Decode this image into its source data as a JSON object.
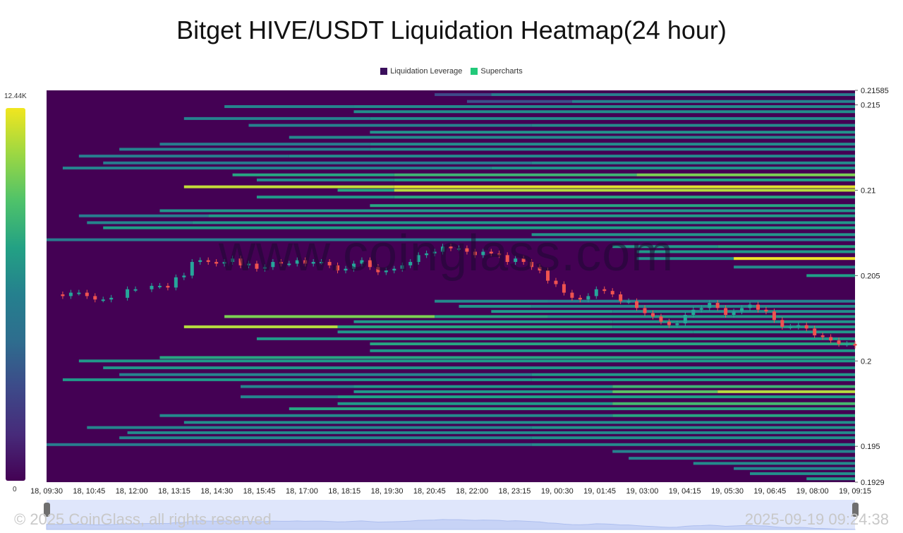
{
  "chart_data": {
    "type": "heatmap",
    "title": "Bitget HIVE/USDT Liquidation Heatmap(24 hour)",
    "legend": [
      {
        "label": "Liquidation Leverage",
        "color": "#3b0f5c"
      },
      {
        "label": "Supercharts",
        "color": "#22c97a"
      }
    ],
    "colorbar": {
      "max_label": "12.44K",
      "min_label": "0"
    },
    "x_tick_labels": [
      "18, 09:30",
      "18, 10:45",
      "18, 12:00",
      "18, 13:15",
      "18, 14:30",
      "18, 15:45",
      "18, 17:00",
      "18, 18:15",
      "18, 19:30",
      "18, 20:45",
      "18, 22:00",
      "18, 23:15",
      "19, 00:30",
      "19, 01:45",
      "19, 03:00",
      "19, 04:15",
      "19, 05:30",
      "19, 06:45",
      "19, 08:00",
      "19, 09:15"
    ],
    "y_tick_labels": [
      0.21585,
      0.215,
      0.21,
      0.205,
      0.2,
      0.195,
      0.1929
    ],
    "ylim": [
      0.1929,
      0.21585
    ],
    "background_color": "#440154",
    "liquidation_levels": [
      {
        "price": 0.2156,
        "segments": [
          [
            0.48,
            0.55,
            0.2
          ],
          [
            0.55,
            1.0,
            0.38
          ]
        ]
      },
      {
        "price": 0.2152,
        "segments": [
          [
            0.52,
            0.65,
            0.22
          ],
          [
            0.65,
            1.0,
            0.4
          ]
        ]
      },
      {
        "price": 0.2149,
        "segments": [
          [
            0.22,
            0.38,
            0.42
          ],
          [
            0.38,
            1.0,
            0.45
          ]
        ]
      },
      {
        "price": 0.2146,
        "segments": [
          [
            0.38,
            1.0,
            0.48
          ]
        ]
      },
      {
        "price": 0.2142,
        "segments": [
          [
            0.17,
            0.4,
            0.4
          ],
          [
            0.4,
            1.0,
            0.47
          ]
        ]
      },
      {
        "price": 0.2138,
        "segments": [
          [
            0.25,
            0.6,
            0.4
          ],
          [
            0.6,
            1.0,
            0.46
          ]
        ]
      },
      {
        "price": 0.2134,
        "segments": [
          [
            0.4,
            1.0,
            0.5
          ]
        ]
      },
      {
        "price": 0.2131,
        "segments": [
          [
            0.3,
            1.0,
            0.44
          ]
        ]
      },
      {
        "price": 0.2127,
        "segments": [
          [
            0.14,
            0.4,
            0.38
          ],
          [
            0.4,
            1.0,
            0.46
          ]
        ]
      },
      {
        "price": 0.2124,
        "segments": [
          [
            0.09,
            0.4,
            0.4
          ],
          [
            0.4,
            1.0,
            0.48
          ]
        ]
      },
      {
        "price": 0.212,
        "segments": [
          [
            0.04,
            0.3,
            0.38
          ],
          [
            0.3,
            1.0,
            0.45
          ]
        ]
      },
      {
        "price": 0.2116,
        "segments": [
          [
            0.07,
            0.6,
            0.38
          ],
          [
            0.6,
            1.0,
            0.46
          ]
        ]
      },
      {
        "price": 0.2113,
        "segments": [
          [
            0.02,
            0.55,
            0.4
          ],
          [
            0.55,
            1.0,
            0.5
          ]
        ]
      },
      {
        "price": 0.2109,
        "segments": [
          [
            0.23,
            0.43,
            0.62
          ],
          [
            0.43,
            0.73,
            0.68
          ],
          [
            0.73,
            1.0,
            0.82
          ]
        ]
      },
      {
        "price": 0.2106,
        "segments": [
          [
            0.26,
            0.43,
            0.48
          ],
          [
            0.43,
            1.0,
            0.6
          ]
        ]
      },
      {
        "price": 0.2102,
        "segments": [
          [
            0.17,
            0.43,
            0.92
          ],
          [
            0.43,
            1.0,
            0.96
          ]
        ]
      },
      {
        "price": 0.21,
        "segments": [
          [
            0.36,
            0.43,
            0.62
          ],
          [
            0.43,
            1.0,
            0.9
          ]
        ]
      },
      {
        "price": 0.2096,
        "segments": [
          [
            0.26,
            0.43,
            0.55
          ],
          [
            0.43,
            1.0,
            0.62
          ]
        ]
      },
      {
        "price": 0.2091,
        "segments": [
          [
            0.4,
            1.0,
            0.62
          ]
        ]
      },
      {
        "price": 0.2088,
        "segments": [
          [
            0.14,
            1.0,
            0.52
          ]
        ]
      },
      {
        "price": 0.2085,
        "segments": [
          [
            0.04,
            0.2,
            0.38
          ],
          [
            0.2,
            1.0,
            0.55
          ]
        ]
      },
      {
        "price": 0.2081,
        "segments": [
          [
            0.05,
            0.18,
            0.42
          ],
          [
            0.18,
            1.0,
            0.52
          ]
        ]
      },
      {
        "price": 0.2078,
        "segments": [
          [
            0.07,
            1.0,
            0.58
          ]
        ]
      },
      {
        "price": 0.2074,
        "segments": [
          [
            0.6,
            1.0,
            0.52
          ]
        ]
      },
      {
        "price": 0.2071,
        "segments": [
          [
            0.0,
            0.72,
            0.38
          ],
          [
            0.72,
            1.0,
            0.42
          ]
        ]
      },
      {
        "price": 0.2067,
        "segments": [
          [
            0.7,
            0.83,
            0.55
          ],
          [
            0.83,
            1.0,
            0.62
          ]
        ]
      },
      {
        "price": 0.2064,
        "segments": [
          [
            0.73,
            0.85,
            0.55
          ],
          [
            0.85,
            1.0,
            0.55
          ]
        ]
      },
      {
        "price": 0.206,
        "segments": [
          [
            0.73,
            0.85,
            0.48
          ],
          [
            0.85,
            1.0,
            0.98
          ]
        ]
      },
      {
        "price": 0.2055,
        "segments": [
          [
            0.85,
            1.0,
            0.45
          ]
        ]
      },
      {
        "price": 0.205,
        "segments": [
          [
            0.94,
            1.0,
            0.6
          ]
        ]
      },
      {
        "price": 0.2035,
        "segments": [
          [
            0.48,
            0.62,
            0.45
          ],
          [
            0.62,
            1.0,
            0.4
          ]
        ]
      },
      {
        "price": 0.2032,
        "segments": [
          [
            0.51,
            0.6,
            0.52
          ],
          [
            0.6,
            1.0,
            0.45
          ]
        ]
      },
      {
        "price": 0.2029,
        "segments": [
          [
            0.55,
            0.7,
            0.55
          ],
          [
            0.7,
            1.0,
            0.48
          ]
        ]
      },
      {
        "price": 0.2026,
        "segments": [
          [
            0.22,
            0.48,
            0.82
          ],
          [
            0.48,
            0.62,
            0.62
          ],
          [
            0.62,
            1.0,
            0.55
          ]
        ]
      },
      {
        "price": 0.2023,
        "segments": [
          [
            0.38,
            0.7,
            0.55
          ],
          [
            0.7,
            1.0,
            0.52
          ]
        ]
      },
      {
        "price": 0.202,
        "segments": [
          [
            0.17,
            0.36,
            0.9
          ],
          [
            0.36,
            0.7,
            0.62
          ],
          [
            0.7,
            1.0,
            0.55
          ]
        ]
      },
      {
        "price": 0.2017,
        "segments": [
          [
            0.36,
            0.8,
            0.52
          ],
          [
            0.8,
            1.0,
            0.52
          ]
        ]
      },
      {
        "price": 0.2013,
        "segments": [
          [
            0.26,
            1.0,
            0.55
          ]
        ]
      },
      {
        "price": 0.201,
        "segments": [
          [
            0.4,
            1.0,
            0.62
          ]
        ]
      },
      {
        "price": 0.2006,
        "segments": [
          [
            0.4,
            1.0,
            0.55
          ]
        ]
      },
      {
        "price": 0.2002,
        "segments": [
          [
            0.14,
            1.0,
            0.62
          ]
        ]
      },
      {
        "price": 0.2,
        "segments": [
          [
            0.04,
            1.0,
            0.55
          ]
        ]
      },
      {
        "price": 0.1996,
        "segments": [
          [
            0.07,
            1.0,
            0.52
          ]
        ]
      },
      {
        "price": 0.1992,
        "segments": [
          [
            0.09,
            0.6,
            0.4
          ],
          [
            0.6,
            1.0,
            0.55
          ]
        ]
      },
      {
        "price": 0.1989,
        "segments": [
          [
            0.02,
            0.6,
            0.55
          ],
          [
            0.6,
            1.0,
            0.6
          ]
        ]
      },
      {
        "price": 0.1985,
        "segments": [
          [
            0.24,
            0.38,
            0.42
          ],
          [
            0.38,
            0.7,
            0.55
          ],
          [
            0.7,
            1.0,
            0.68
          ]
        ]
      },
      {
        "price": 0.1982,
        "segments": [
          [
            0.38,
            0.7,
            0.55
          ],
          [
            0.7,
            0.83,
            0.75
          ],
          [
            0.83,
            1.0,
            0.9
          ]
        ]
      },
      {
        "price": 0.1979,
        "segments": [
          [
            0.24,
            0.36,
            0.42
          ],
          [
            0.36,
            1.0,
            0.6
          ]
        ]
      },
      {
        "price": 0.1975,
        "segments": [
          [
            0.36,
            0.7,
            0.55
          ],
          [
            0.7,
            1.0,
            0.7
          ]
        ]
      },
      {
        "price": 0.1972,
        "segments": [
          [
            0.3,
            1.0,
            0.62
          ]
        ]
      },
      {
        "price": 0.1968,
        "segments": [
          [
            0.14,
            0.7,
            0.45
          ],
          [
            0.7,
            1.0,
            0.62
          ]
        ]
      },
      {
        "price": 0.1964,
        "segments": [
          [
            0.17,
            1.0,
            0.48
          ]
        ]
      },
      {
        "price": 0.1961,
        "segments": [
          [
            0.05,
            0.6,
            0.42
          ],
          [
            0.6,
            1.0,
            0.5
          ]
        ]
      },
      {
        "price": 0.1958,
        "segments": [
          [
            0.1,
            1.0,
            0.45
          ]
        ]
      },
      {
        "price": 0.1955,
        "segments": [
          [
            0.09,
            0.6,
            0.42
          ],
          [
            0.6,
            1.0,
            0.48
          ]
        ]
      },
      {
        "price": 0.1951,
        "segments": [
          [
            0.0,
            0.6,
            0.38
          ],
          [
            0.6,
            1.0,
            0.45
          ]
        ]
      },
      {
        "price": 0.1947,
        "segments": [
          [
            0.7,
            1.0,
            0.4
          ]
        ]
      },
      {
        "price": 0.1943,
        "segments": [
          [
            0.72,
            1.0,
            0.4
          ]
        ]
      },
      {
        "price": 0.194,
        "segments": [
          [
            0.8,
            1.0,
            0.45
          ]
        ]
      },
      {
        "price": 0.1937,
        "segments": [
          [
            0.85,
            1.0,
            0.42
          ]
        ]
      },
      {
        "price": 0.1934,
        "segments": [
          [
            0.87,
            1.0,
            0.48
          ]
        ]
      },
      {
        "price": 0.1931,
        "segments": [
          [
            0.94,
            1.0,
            0.55
          ]
        ]
      }
    ],
    "price_path": [
      [
        0.0,
        0.2039
      ],
      [
        0.02,
        0.2038
      ],
      [
        0.03,
        0.204
      ],
      [
        0.04,
        0.204
      ],
      [
        0.05,
        0.2038
      ],
      [
        0.06,
        0.2036
      ],
      [
        0.07,
        0.2036
      ],
      [
        0.08,
        0.2037
      ],
      [
        0.1,
        0.2042
      ],
      [
        0.11,
        0.2042
      ],
      [
        0.13,
        0.2044
      ],
      [
        0.14,
        0.2044
      ],
      [
        0.15,
        0.2043
      ],
      [
        0.16,
        0.2049
      ],
      [
        0.17,
        0.205
      ],
      [
        0.18,
        0.2058
      ],
      [
        0.19,
        0.2059
      ],
      [
        0.2,
        0.2058
      ],
      [
        0.21,
        0.2057
      ],
      [
        0.22,
        0.2058
      ],
      [
        0.23,
        0.206
      ],
      [
        0.24,
        0.2056
      ],
      [
        0.25,
        0.2057
      ],
      [
        0.26,
        0.2054
      ],
      [
        0.27,
        0.2055
      ],
      [
        0.28,
        0.2058
      ],
      [
        0.29,
        0.2057
      ],
      [
        0.3,
        0.2057
      ],
      [
        0.31,
        0.2059
      ],
      [
        0.32,
        0.2057
      ],
      [
        0.33,
        0.2058
      ],
      [
        0.34,
        0.2058
      ],
      [
        0.35,
        0.2056
      ],
      [
        0.36,
        0.2053
      ],
      [
        0.37,
        0.2054
      ],
      [
        0.38,
        0.2057
      ],
      [
        0.39,
        0.2059
      ],
      [
        0.4,
        0.2055
      ],
      [
        0.41,
        0.2052
      ],
      [
        0.42,
        0.2053
      ],
      [
        0.43,
        0.2054
      ],
      [
        0.44,
        0.2056
      ],
      [
        0.45,
        0.2058
      ],
      [
        0.46,
        0.2062
      ],
      [
        0.47,
        0.2063
      ],
      [
        0.48,
        0.2064
      ],
      [
        0.49,
        0.2067
      ],
      [
        0.5,
        0.2066
      ],
      [
        0.51,
        0.2066
      ],
      [
        0.52,
        0.2064
      ],
      [
        0.53,
        0.2062
      ],
      [
        0.54,
        0.2064
      ],
      [
        0.55,
        0.2063
      ],
      [
        0.56,
        0.2062
      ],
      [
        0.57,
        0.2058
      ],
      [
        0.58,
        0.206
      ],
      [
        0.59,
        0.2058
      ],
      [
        0.6,
        0.2055
      ],
      [
        0.61,
        0.2053
      ],
      [
        0.62,
        0.2047
      ],
      [
        0.63,
        0.2045
      ],
      [
        0.64,
        0.204
      ],
      [
        0.65,
        0.2037
      ],
      [
        0.66,
        0.2036
      ],
      [
        0.67,
        0.2038
      ],
      [
        0.68,
        0.2042
      ],
      [
        0.69,
        0.2041
      ],
      [
        0.7,
        0.2039
      ],
      [
        0.71,
        0.2035
      ],
      [
        0.72,
        0.2035
      ],
      [
        0.73,
        0.2031
      ],
      [
        0.74,
        0.2028
      ],
      [
        0.75,
        0.2026
      ],
      [
        0.76,
        0.2023
      ],
      [
        0.77,
        0.2021
      ],
      [
        0.78,
        0.2022
      ],
      [
        0.79,
        0.2027
      ],
      [
        0.8,
        0.203
      ],
      [
        0.81,
        0.2031
      ],
      [
        0.82,
        0.2034
      ],
      [
        0.83,
        0.2031
      ],
      [
        0.84,
        0.2027
      ],
      [
        0.85,
        0.2029
      ],
      [
        0.86,
        0.2031
      ],
      [
        0.87,
        0.2033
      ],
      [
        0.88,
        0.203
      ],
      [
        0.89,
        0.2029
      ],
      [
        0.9,
        0.2024
      ],
      [
        0.91,
        0.202
      ],
      [
        0.92,
        0.202
      ],
      [
        0.93,
        0.2021
      ],
      [
        0.94,
        0.2019
      ],
      [
        0.95,
        0.2015
      ],
      [
        0.96,
        0.2014
      ],
      [
        0.97,
        0.2012
      ],
      [
        0.98,
        0.201
      ],
      [
        0.99,
        0.201
      ],
      [
        1.0,
        0.2009
      ]
    ]
  },
  "watermark": {
    "brand": "www.coinglass.com",
    "left": "© 2025 CoinGlass, all rights reserved",
    "right": "2025-09-19 09:24:38"
  }
}
